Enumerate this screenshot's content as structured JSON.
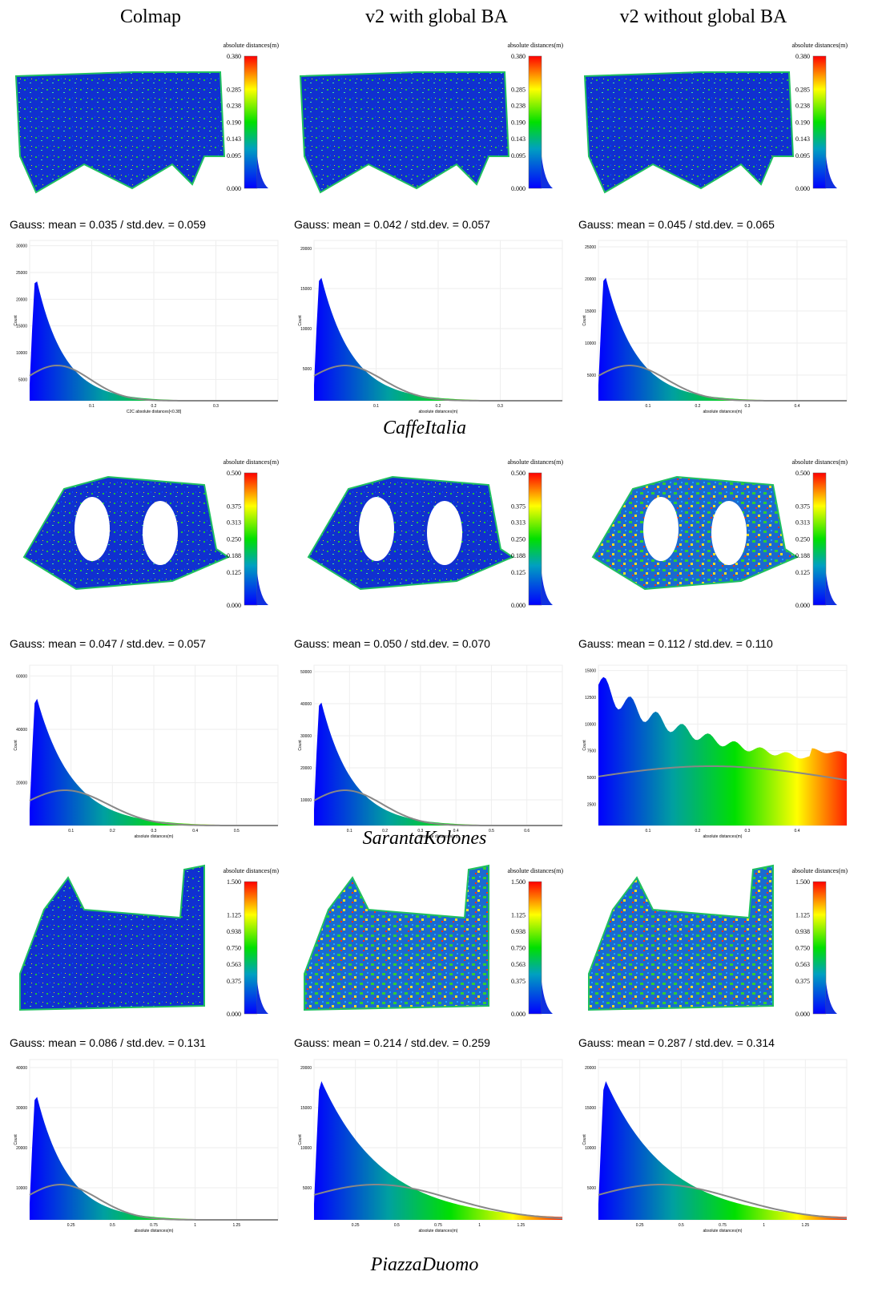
{
  "columns": [
    "Colmap",
    "v2 with global BA",
    "v2 without global BA"
  ],
  "scenes": [
    {
      "name": "CaffeItalia",
      "panels": [
        {
          "colorbar_title": "absolute distances(m)",
          "colorbar_ticks": [
            "0.380",
            "0.285",
            "0.238",
            "0.190",
            "0.143",
            "0.095",
            "0.000"
          ],
          "gauss": "Gauss: mean = 0.035 / std.dev. = 0.059",
          "hist_y_label": "Count",
          "hist_x_label": "C2C absolute distances[<0.38]",
          "hist_yticks": [
            "30000",
            "25000",
            "20000",
            "15000",
            "10000",
            "5000"
          ],
          "hist_xticks": [
            "0.1",
            "0.2",
            "0.3"
          ]
        },
        {
          "colorbar_title": "absolute distances(m)",
          "colorbar_ticks": [
            "0.380",
            "0.285",
            "0.238",
            "0.190",
            "0.143",
            "0.095",
            "0.000"
          ],
          "gauss": "Gauss: mean = 0.042 / std.dev. = 0.057",
          "hist_y_label": "Count",
          "hist_x_label": "absolute distances(m)",
          "hist_yticks": [
            "20000",
            "15000",
            "10000",
            "5000"
          ],
          "hist_xticks": [
            "0.1",
            "0.2",
            "0.3"
          ]
        },
        {
          "colorbar_title": "absolute distances(m)",
          "colorbar_ticks": [
            "0.380",
            "0.285",
            "0.238",
            "0.190",
            "0.143",
            "0.095",
            "0.000"
          ],
          "gauss": "Gauss: mean = 0.045 / std.dev. = 0.065",
          "hist_y_label": "Count",
          "hist_x_label": "absolute distances(m)",
          "hist_yticks": [
            "25000",
            "20000",
            "15000",
            "10000",
            "5000"
          ],
          "hist_xticks": [
            "0.1",
            "0.2",
            "0.3",
            "0.4"
          ]
        }
      ]
    },
    {
      "name": "SarantaKolones",
      "panels": [
        {
          "colorbar_title": "absolute distances(m)",
          "colorbar_ticks": [
            "0.500",
            "0.375",
            "0.313",
            "0.250",
            "0.188",
            "0.125",
            "0.000"
          ],
          "gauss": "Gauss: mean = 0.047 / std.dev. = 0.057",
          "hist_y_label": "Count",
          "hist_x_label": "absolute distances(m)",
          "hist_yticks": [
            "60000",
            "40000",
            "20000"
          ],
          "hist_xticks": [
            "0.1",
            "0.2",
            "0.3",
            "0.4",
            "0.5"
          ]
        },
        {
          "colorbar_title": "absolute distances(m)",
          "colorbar_ticks": [
            "0.500",
            "0.375",
            "0.313",
            "0.250",
            "0.188",
            "0.125",
            "0.000"
          ],
          "gauss": "Gauss: mean = 0.050 / std.dev. = 0.070",
          "hist_y_label": "Count",
          "hist_x_label": "absolute distances(m)",
          "hist_yticks": [
            "50000",
            "40000",
            "30000",
            "20000",
            "10000"
          ],
          "hist_xticks": [
            "0.1",
            "0.2",
            "0.3",
            "0.4",
            "0.5",
            "0.6"
          ]
        },
        {
          "colorbar_title": "absolute distances(m)",
          "colorbar_ticks": [
            "0.500",
            "0.375",
            "0.313",
            "0.250",
            "0.188",
            "0.125",
            "0.000"
          ],
          "gauss": "Gauss: mean = 0.112 / std.dev. = 0.110",
          "hist_y_label": "Count",
          "hist_x_label": "absolute distances(m)",
          "hist_yticks": [
            "15000",
            "12500",
            "10000",
            "7500",
            "5000",
            "2500"
          ],
          "hist_xticks": [
            "0.1",
            "0.2",
            "0.3",
            "0.4"
          ]
        }
      ]
    },
    {
      "name": "PiazzaDuomo",
      "panels": [
        {
          "colorbar_title": "absolute distances(m)",
          "colorbar_ticks": [
            "1.500",
            "1.125",
            "0.938",
            "0.750",
            "0.563",
            "0.375",
            "0.000"
          ],
          "gauss": "Gauss: mean = 0.086 / std.dev. = 0.131",
          "hist_y_label": "Count",
          "hist_x_label": "absolute distances(m)",
          "hist_yticks": [
            "40000",
            "30000",
            "20000",
            "10000"
          ],
          "hist_xticks": [
            "0.25",
            "0.5",
            "0.75",
            "1",
            "1.25"
          ]
        },
        {
          "colorbar_title": "absolute distances(m)",
          "colorbar_ticks": [
            "1.500",
            "1.125",
            "0.938",
            "0.750",
            "0.563",
            "0.375",
            "0.000"
          ],
          "gauss": "Gauss: mean = 0.214 / std.dev. = 0.259",
          "hist_y_label": "Count",
          "hist_x_label": "absolute distances(m)",
          "hist_yticks": [
            "20000",
            "15000",
            "10000",
            "5000"
          ],
          "hist_xticks": [
            "0.25",
            "0.5",
            "0.75",
            "1",
            "1.25"
          ]
        },
        {
          "colorbar_title": "absolute distances(m)",
          "colorbar_ticks": [
            "1.500",
            "1.125",
            "0.938",
            "0.750",
            "0.563",
            "0.375",
            "0.000"
          ],
          "gauss": "Gauss: mean = 0.287 / std.dev. = 0.314",
          "hist_y_label": "Count",
          "hist_x_label": "absolute distances(m)",
          "hist_yticks": [
            "20000",
            "15000",
            "10000",
            "5000"
          ],
          "hist_xticks": [
            "0.25",
            "0.5",
            "0.75",
            "1",
            "1.25"
          ]
        }
      ]
    }
  ]
}
